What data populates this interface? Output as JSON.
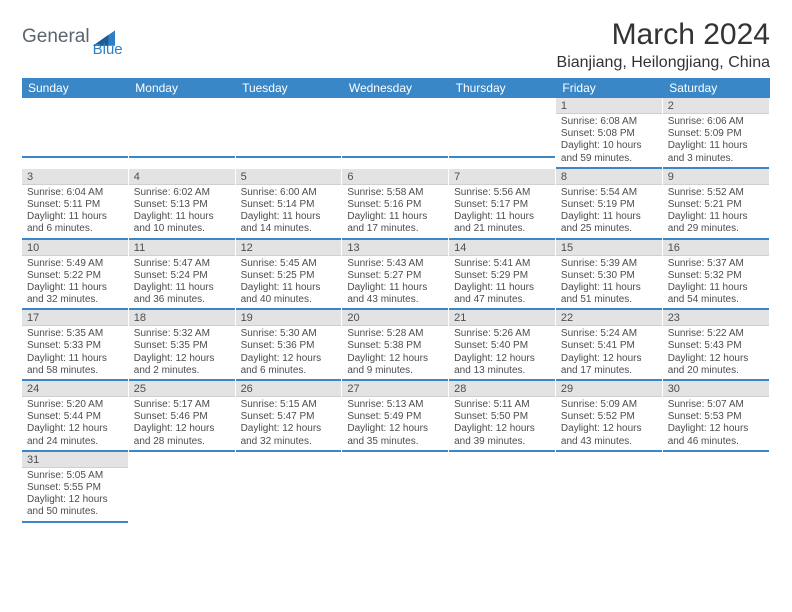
{
  "logo": {
    "text1": "General",
    "text2": "Blue"
  },
  "title": "March 2024",
  "location": "Bianjiang, Heilongjiang, China",
  "colors": {
    "header_bg": "#3a87c7",
    "header_fg": "#ffffff",
    "daynum_bg": "#e3e3e3",
    "daynum_border": "#cfcfcf",
    "cell_border": "#3a87c7",
    "text": "#4d4d4d",
    "logo_grey": "#5a6570",
    "logo_blue": "#2f7fc5"
  },
  "day_names": [
    "Sunday",
    "Monday",
    "Tuesday",
    "Wednesday",
    "Thursday",
    "Friday",
    "Saturday"
  ],
  "weeks": [
    [
      {
        "blank": true
      },
      {
        "blank": true
      },
      {
        "blank": true
      },
      {
        "blank": true
      },
      {
        "blank": true
      },
      {
        "day": "1",
        "sunrise": "Sunrise: 6:08 AM",
        "sunset": "Sunset: 5:08 PM",
        "day1": "Daylight: 10 hours",
        "day2": "and 59 minutes."
      },
      {
        "day": "2",
        "sunrise": "Sunrise: 6:06 AM",
        "sunset": "Sunset: 5:09 PM",
        "day1": "Daylight: 11 hours",
        "day2": "and 3 minutes."
      }
    ],
    [
      {
        "day": "3",
        "sunrise": "Sunrise: 6:04 AM",
        "sunset": "Sunset: 5:11 PM",
        "day1": "Daylight: 11 hours",
        "day2": "and 6 minutes."
      },
      {
        "day": "4",
        "sunrise": "Sunrise: 6:02 AM",
        "sunset": "Sunset: 5:13 PM",
        "day1": "Daylight: 11 hours",
        "day2": "and 10 minutes."
      },
      {
        "day": "5",
        "sunrise": "Sunrise: 6:00 AM",
        "sunset": "Sunset: 5:14 PM",
        "day1": "Daylight: 11 hours",
        "day2": "and 14 minutes."
      },
      {
        "day": "6",
        "sunrise": "Sunrise: 5:58 AM",
        "sunset": "Sunset: 5:16 PM",
        "day1": "Daylight: 11 hours",
        "day2": "and 17 minutes."
      },
      {
        "day": "7",
        "sunrise": "Sunrise: 5:56 AM",
        "sunset": "Sunset: 5:17 PM",
        "day1": "Daylight: 11 hours",
        "day2": "and 21 minutes."
      },
      {
        "day": "8",
        "sunrise": "Sunrise: 5:54 AM",
        "sunset": "Sunset: 5:19 PM",
        "day1": "Daylight: 11 hours",
        "day2": "and 25 minutes."
      },
      {
        "day": "9",
        "sunrise": "Sunrise: 5:52 AM",
        "sunset": "Sunset: 5:21 PM",
        "day1": "Daylight: 11 hours",
        "day2": "and 29 minutes."
      }
    ],
    [
      {
        "day": "10",
        "sunrise": "Sunrise: 5:49 AM",
        "sunset": "Sunset: 5:22 PM",
        "day1": "Daylight: 11 hours",
        "day2": "and 32 minutes."
      },
      {
        "day": "11",
        "sunrise": "Sunrise: 5:47 AM",
        "sunset": "Sunset: 5:24 PM",
        "day1": "Daylight: 11 hours",
        "day2": "and 36 minutes."
      },
      {
        "day": "12",
        "sunrise": "Sunrise: 5:45 AM",
        "sunset": "Sunset: 5:25 PM",
        "day1": "Daylight: 11 hours",
        "day2": "and 40 minutes."
      },
      {
        "day": "13",
        "sunrise": "Sunrise: 5:43 AM",
        "sunset": "Sunset: 5:27 PM",
        "day1": "Daylight: 11 hours",
        "day2": "and 43 minutes."
      },
      {
        "day": "14",
        "sunrise": "Sunrise: 5:41 AM",
        "sunset": "Sunset: 5:29 PM",
        "day1": "Daylight: 11 hours",
        "day2": "and 47 minutes."
      },
      {
        "day": "15",
        "sunrise": "Sunrise: 5:39 AM",
        "sunset": "Sunset: 5:30 PM",
        "day1": "Daylight: 11 hours",
        "day2": "and 51 minutes."
      },
      {
        "day": "16",
        "sunrise": "Sunrise: 5:37 AM",
        "sunset": "Sunset: 5:32 PM",
        "day1": "Daylight: 11 hours",
        "day2": "and 54 minutes."
      }
    ],
    [
      {
        "day": "17",
        "sunrise": "Sunrise: 5:35 AM",
        "sunset": "Sunset: 5:33 PM",
        "day1": "Daylight: 11 hours",
        "day2": "and 58 minutes."
      },
      {
        "day": "18",
        "sunrise": "Sunrise: 5:32 AM",
        "sunset": "Sunset: 5:35 PM",
        "day1": "Daylight: 12 hours",
        "day2": "and 2 minutes."
      },
      {
        "day": "19",
        "sunrise": "Sunrise: 5:30 AM",
        "sunset": "Sunset: 5:36 PM",
        "day1": "Daylight: 12 hours",
        "day2": "and 6 minutes."
      },
      {
        "day": "20",
        "sunrise": "Sunrise: 5:28 AM",
        "sunset": "Sunset: 5:38 PM",
        "day1": "Daylight: 12 hours",
        "day2": "and 9 minutes."
      },
      {
        "day": "21",
        "sunrise": "Sunrise: 5:26 AM",
        "sunset": "Sunset: 5:40 PM",
        "day1": "Daylight: 12 hours",
        "day2": "and 13 minutes."
      },
      {
        "day": "22",
        "sunrise": "Sunrise: 5:24 AM",
        "sunset": "Sunset: 5:41 PM",
        "day1": "Daylight: 12 hours",
        "day2": "and 17 minutes."
      },
      {
        "day": "23",
        "sunrise": "Sunrise: 5:22 AM",
        "sunset": "Sunset: 5:43 PM",
        "day1": "Daylight: 12 hours",
        "day2": "and 20 minutes."
      }
    ],
    [
      {
        "day": "24",
        "sunrise": "Sunrise: 5:20 AM",
        "sunset": "Sunset: 5:44 PM",
        "day1": "Daylight: 12 hours",
        "day2": "and 24 minutes."
      },
      {
        "day": "25",
        "sunrise": "Sunrise: 5:17 AM",
        "sunset": "Sunset: 5:46 PM",
        "day1": "Daylight: 12 hours",
        "day2": "and 28 minutes."
      },
      {
        "day": "26",
        "sunrise": "Sunrise: 5:15 AM",
        "sunset": "Sunset: 5:47 PM",
        "day1": "Daylight: 12 hours",
        "day2": "and 32 minutes."
      },
      {
        "day": "27",
        "sunrise": "Sunrise: 5:13 AM",
        "sunset": "Sunset: 5:49 PM",
        "day1": "Daylight: 12 hours",
        "day2": "and 35 minutes."
      },
      {
        "day": "28",
        "sunrise": "Sunrise: 5:11 AM",
        "sunset": "Sunset: 5:50 PM",
        "day1": "Daylight: 12 hours",
        "day2": "and 39 minutes."
      },
      {
        "day": "29",
        "sunrise": "Sunrise: 5:09 AM",
        "sunset": "Sunset: 5:52 PM",
        "day1": "Daylight: 12 hours",
        "day2": "and 43 minutes."
      },
      {
        "day": "30",
        "sunrise": "Sunrise: 5:07 AM",
        "sunset": "Sunset: 5:53 PM",
        "day1": "Daylight: 12 hours",
        "day2": "and 46 minutes."
      }
    ],
    [
      {
        "day": "31",
        "sunrise": "Sunrise: 5:05 AM",
        "sunset": "Sunset: 5:55 PM",
        "day1": "Daylight: 12 hours",
        "day2": "and 50 minutes."
      },
      {
        "blank": true,
        "last": true
      },
      {
        "blank": true,
        "last": true
      },
      {
        "blank": true,
        "last": true
      },
      {
        "blank": true,
        "last": true
      },
      {
        "blank": true,
        "last": true
      },
      {
        "blank": true,
        "last": true
      }
    ]
  ]
}
